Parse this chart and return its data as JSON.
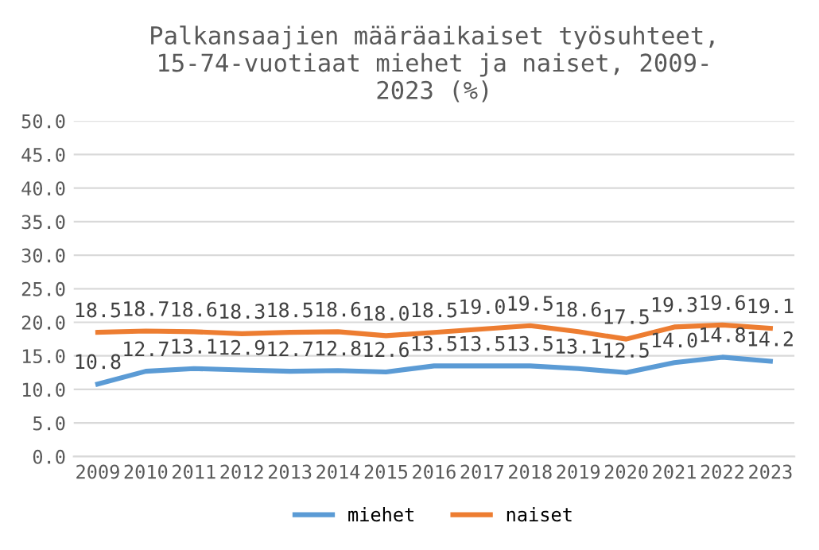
{
  "chart_data": {
    "type": "line",
    "title": "Palkansaajien määräaikaiset työsuhteet,\n15-74-vuotiaat miehet ja naiset, 2009-\n2023 (%)",
    "categories": [
      "2009",
      "2010",
      "2011",
      "2012",
      "2013",
      "2014",
      "2015",
      "2016",
      "2017",
      "2018",
      "2019",
      "2020",
      "2021",
      "2022",
      "2023"
    ],
    "series": [
      {
        "name": "miehet",
        "color": "#5b9bd5",
        "values": [
          10.8,
          12.7,
          13.1,
          12.9,
          12.7,
          12.8,
          12.6,
          13.5,
          13.5,
          13.5,
          13.1,
          12.5,
          14.0,
          14.8,
          14.2
        ],
        "value_labels": [
          "10.8",
          "12.7",
          "13.1",
          "12.9",
          "12.7",
          "12.8",
          "12.6",
          "13.5",
          "13.5",
          "13.5",
          "13.1",
          "12.5",
          "14.0",
          "14.8",
          "14.2"
        ]
      },
      {
        "name": "naiset",
        "color": "#ed7d31",
        "values": [
          18.5,
          18.7,
          18.6,
          18.3,
          18.5,
          18.6,
          18.0,
          18.5,
          19.0,
          19.5,
          18.6,
          17.5,
          19.3,
          19.6,
          19.1
        ],
        "value_labels": [
          "18.5",
          "18.7",
          "18.6",
          "18.3",
          "18.5",
          "18.6",
          "18.0",
          "18.5",
          "19.0",
          "19.5",
          "18.6",
          "17.5",
          "19.3",
          "19.6",
          "19.1"
        ]
      }
    ],
    "ylim": [
      0,
      50
    ],
    "yticks": [
      {
        "value": 0,
        "label": "0.0"
      },
      {
        "value": 5,
        "label": "5.0"
      },
      {
        "value": 10,
        "label": "10.0"
      },
      {
        "value": 15,
        "label": "15.0"
      },
      {
        "value": 20,
        "label": "20.0"
      },
      {
        "value": 25,
        "label": "25.0"
      },
      {
        "value": 30,
        "label": "30.0"
      },
      {
        "value": 35,
        "label": "35.0"
      },
      {
        "value": 40,
        "label": "40.0"
      },
      {
        "value": 45,
        "label": "45.0"
      },
      {
        "value": 50,
        "label": "50.0"
      }
    ],
    "grid": "y",
    "legend": "bottom",
    "marker": "none",
    "line_style": "solid"
  }
}
